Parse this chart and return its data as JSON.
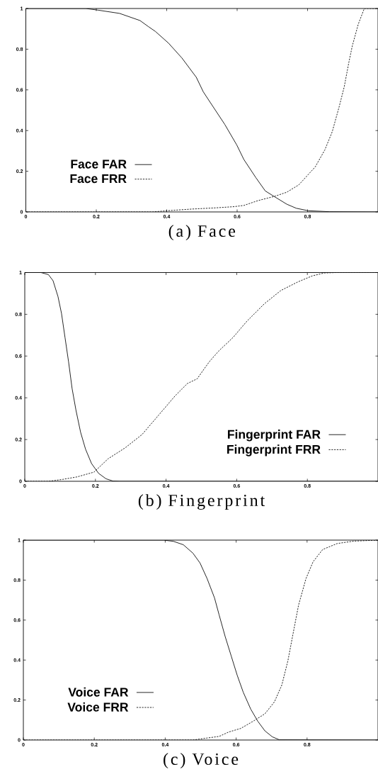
{
  "chart_data": [
    {
      "type": "line",
      "title": "(a) Face",
      "xlim": [
        0,
        1
      ],
      "ylim": [
        0,
        1
      ],
      "xticks": [
        0,
        0.2,
        0.4,
        0.6,
        0.8
      ],
      "yticks": [
        0,
        0.2,
        0.4,
        0.6,
        0.8,
        1
      ],
      "legend": "bottom left",
      "series": [
        {
          "name": "Face FAR",
          "color": "#000000",
          "line_style": "solid",
          "x": [
            0,
            0.17,
            0.205,
            0.266,
            0.324,
            0.348,
            0.368,
            0.405,
            0.443,
            0.484,
            0.504,
            0.531,
            0.565,
            0.599,
            0.619,
            0.653,
            0.68,
            0.707,
            0.741,
            0.768,
            0.802,
            0.863,
            1
          ],
          "values": [
            1,
            1,
            0.992,
            0.976,
            0.941,
            0.911,
            0.887,
            0.83,
            0.757,
            0.662,
            0.59,
            0.519,
            0.43,
            0.329,
            0.258,
            0.169,
            0.103,
            0.074,
            0.038,
            0.018,
            0.006,
            0.001,
            0
          ]
        },
        {
          "name": "Face FRR",
          "color": "#000000",
          "line_style": "dashed",
          "x": [
            0,
            0.36,
            0.402,
            0.47,
            0.538,
            0.592,
            0.619,
            0.66,
            0.707,
            0.741,
            0.775,
            0.802,
            0.822,
            0.849,
            0.87,
            0.89,
            0.904,
            0.917,
            0.927,
            0.944,
            0.961,
            1
          ],
          "values": [
            0,
            0,
            0.006,
            0.014,
            0.02,
            0.026,
            0.032,
            0.056,
            0.077,
            0.097,
            0.133,
            0.184,
            0.222,
            0.305,
            0.394,
            0.519,
            0.614,
            0.733,
            0.816,
            0.923,
            1,
            1
          ]
        }
      ]
    },
    {
      "type": "line",
      "title": "(b) Fingerprint",
      "xlim": [
        0,
        1
      ],
      "ylim": [
        0,
        1
      ],
      "xticks": [
        0,
        0.2,
        0.4,
        0.6,
        0.8
      ],
      "yticks": [
        0,
        0.2,
        0.4,
        0.6,
        0.8,
        1
      ],
      "legend": "bottom right",
      "series": [
        {
          "name": "Fingerprint FAR",
          "color": "#000000",
          "line_style": "solid",
          "x": [
            0,
            0.046,
            0.067,
            0.08,
            0.094,
            0.104,
            0.114,
            0.124,
            0.134,
            0.145,
            0.158,
            0.172,
            0.189,
            0.209,
            0.23,
            0.25,
            0.27,
            1
          ],
          "values": [
            1,
            1,
            0.99,
            0.961,
            0.885,
            0.804,
            0.688,
            0.572,
            0.444,
            0.34,
            0.235,
            0.154,
            0.085,
            0.038,
            0.012,
            0.001,
            0,
            0
          ]
        },
        {
          "name": "Fingerprint FRR",
          "color": "#000000",
          "line_style": "dashed",
          "x": [
            0,
            0.067,
            0.107,
            0.148,
            0.196,
            0.236,
            0.284,
            0.332,
            0.379,
            0.426,
            0.46,
            0.488,
            0.522,
            0.549,
            0.589,
            0.63,
            0.678,
            0.725,
            0.773,
            0.814,
            0.848,
            0.881,
            1
          ],
          "values": [
            0,
            0,
            0.009,
            0.021,
            0.044,
            0.108,
            0.16,
            0.224,
            0.317,
            0.41,
            0.468,
            0.491,
            0.572,
            0.624,
            0.688,
            0.769,
            0.85,
            0.914,
            0.955,
            0.984,
            0.998,
            1,
            1
          ]
        }
      ]
    },
    {
      "type": "line",
      "title": "(c) Voice",
      "xlim": [
        0,
        1
      ],
      "ylim": [
        0,
        1
      ],
      "xticks": [
        0,
        0.2,
        0.4,
        0.6,
        0.8
      ],
      "yticks": [
        0,
        0.2,
        0.4,
        0.6,
        0.8,
        1
      ],
      "legend": "bottom left",
      "series": [
        {
          "name": "Voice FAR",
          "color": "#000000",
          "line_style": "solid",
          "x": [
            0,
            0.396,
            0.423,
            0.451,
            0.478,
            0.498,
            0.518,
            0.539,
            0.552,
            0.569,
            0.586,
            0.603,
            0.62,
            0.641,
            0.661,
            0.681,
            0.702,
            0.722,
            1
          ],
          "values": [
            1,
            1,
            0.994,
            0.977,
            0.935,
            0.886,
            0.808,
            0.711,
            0.626,
            0.518,
            0.421,
            0.324,
            0.239,
            0.155,
            0.094,
            0.046,
            0.016,
            0.001,
            0
          ]
        },
        {
          "name": "Voice FRR",
          "color": "#000000",
          "line_style": "dashed",
          "x": [
            0,
            0.478,
            0.518,
            0.552,
            0.579,
            0.613,
            0.648,
            0.681,
            0.708,
            0.729,
            0.746,
            0.759,
            0.776,
            0.797,
            0.817,
            0.844,
            0.885,
            0.932,
            1
          ],
          "values": [
            0,
            0,
            0.01,
            0.018,
            0.04,
            0.058,
            0.094,
            0.131,
            0.191,
            0.276,
            0.397,
            0.518,
            0.675,
            0.808,
            0.892,
            0.953,
            0.983,
            0.995,
            1
          ]
        }
      ]
    }
  ]
}
